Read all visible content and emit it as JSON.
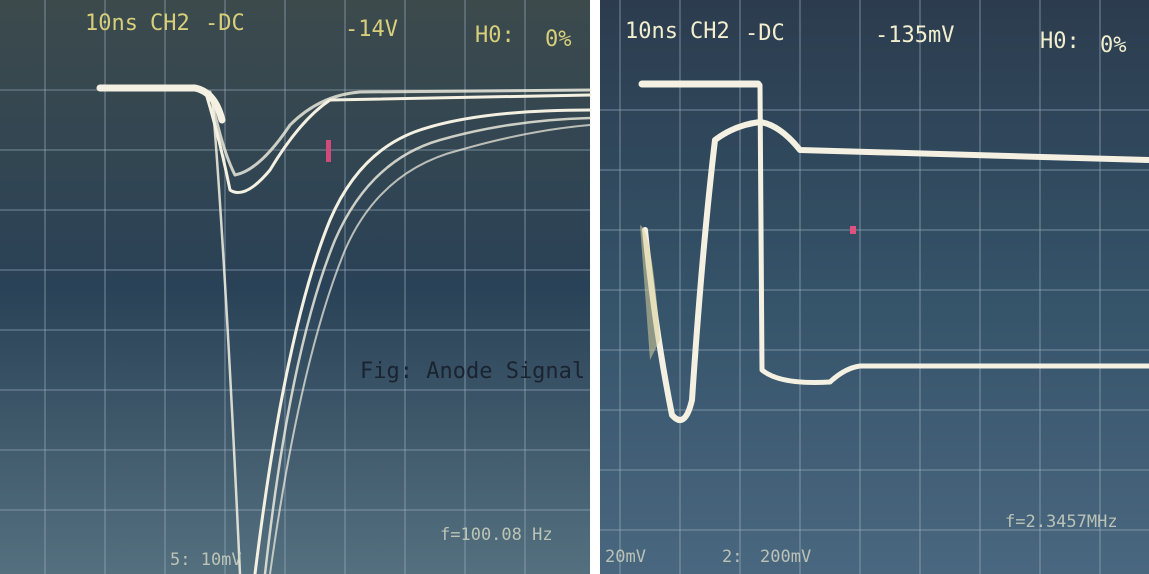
{
  "panels": [
    {
      "header": {
        "timebase": "10ns",
        "channel": "CH2",
        "coupling": "-DC",
        "trigger": "-14V",
        "holdoff": "H0:",
        "percent": "0%"
      },
      "caption": "Fig: Anode Signal",
      "footer": {
        "scale": "5: 10mV",
        "frequency": "f=100.08 Hz"
      }
    },
    {
      "header": {
        "timebase": "10ns",
        "channel": "CH2",
        "coupling": "-DC",
        "trigger": "-135mV",
        "holdoff": "H0:",
        "percent": "0%"
      },
      "footer": {
        "ch1_scale": "20mV",
        "ch2_label": "2:",
        "ch2_scale": "200mV",
        "frequency": "f=2.3457MHz"
      }
    }
  ]
}
